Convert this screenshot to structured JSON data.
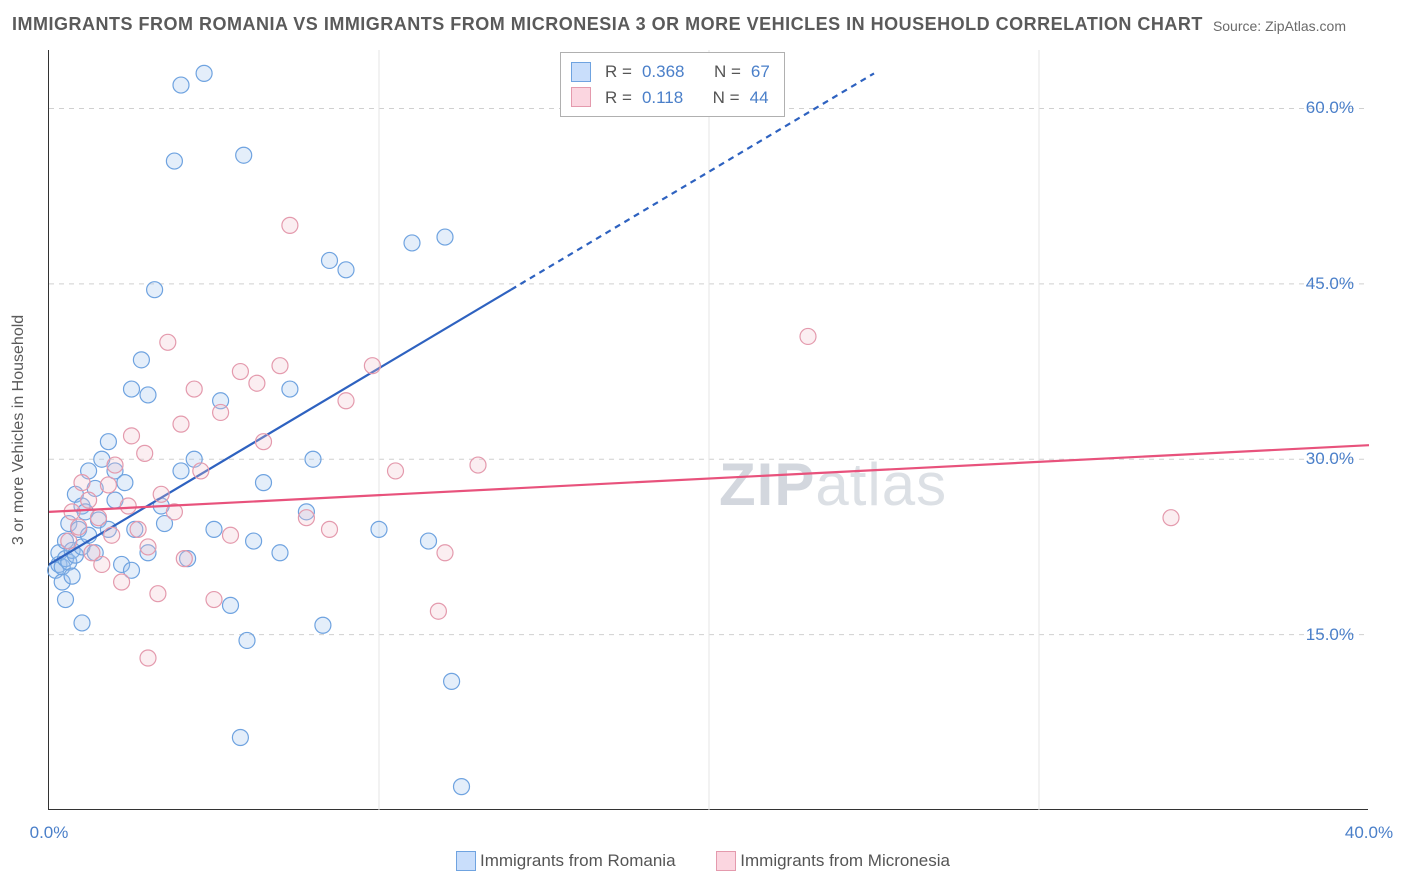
{
  "title": "IMMIGRANTS FROM ROMANIA VS IMMIGRANTS FROM MICRONESIA 3 OR MORE VEHICLES IN HOUSEHOLD CORRELATION CHART",
  "source_label": "Source: ZipAtlas.com",
  "y_axis_label": "3 or more Vehicles in Household",
  "watermark_a": "ZIP",
  "watermark_b": "atlas",
  "chart": {
    "type": "scatter",
    "xlim": [
      0,
      40
    ],
    "ylim": [
      0,
      65
    ],
    "x_ticks": [
      0,
      40
    ],
    "x_tick_labels": [
      "0.0%",
      "40.0%"
    ],
    "y_ticks": [
      15,
      30,
      45,
      60
    ],
    "y_tick_labels": [
      "15.0%",
      "30.0%",
      "45.0%",
      "60.0%"
    ],
    "x_minor_ticks": [
      10,
      20,
      30
    ],
    "background_color": "#ffffff",
    "grid_color": "#d0d0d0",
    "axis_color": "#333333",
    "marker_radius": 8,
    "marker_stroke_width": 1.2,
    "marker_fill_opacity": 0.28,
    "line_width": 2.2,
    "series": [
      {
        "name": "Immigrants from Romania",
        "color_stroke": "#6fa3e0",
        "color_fill": "#9fc3ed",
        "line_color": "#2e62c0",
        "R": "0.368",
        "N": "67",
        "reg_line": {
          "x1": 0,
          "y1": 21,
          "x2": 14,
          "y2": 44.5,
          "dash_from_x": 14,
          "dash_to_x": 25,
          "dash_to_y": 63
        },
        "points": [
          [
            0.2,
            20.5
          ],
          [
            0.3,
            21
          ],
          [
            0.3,
            22
          ],
          [
            0.4,
            19.5
          ],
          [
            0.4,
            20.8
          ],
          [
            0.5,
            21.5
          ],
          [
            0.5,
            23
          ],
          [
            0.6,
            21.2
          ],
          [
            0.6,
            24.5
          ],
          [
            0.7,
            20
          ],
          [
            0.7,
            22.2
          ],
          [
            0.8,
            21.8
          ],
          [
            0.8,
            27
          ],
          [
            0.9,
            24
          ],
          [
            1.0,
            22.5
          ],
          [
            1.0,
            26
          ],
          [
            1.1,
            25.5
          ],
          [
            1.2,
            23.5
          ],
          [
            1.2,
            29
          ],
          [
            1.4,
            22
          ],
          [
            1.4,
            27.5
          ],
          [
            1.5,
            24.8
          ],
          [
            1.6,
            30
          ],
          [
            1.8,
            31.5
          ],
          [
            1.8,
            24
          ],
          [
            2.0,
            26.5
          ],
          [
            2.0,
            29
          ],
          [
            2.2,
            21
          ],
          [
            2.3,
            28
          ],
          [
            2.5,
            20.5
          ],
          [
            2.5,
            36
          ],
          [
            2.6,
            24
          ],
          [
            2.8,
            38.5
          ],
          [
            3.0,
            22
          ],
          [
            3.0,
            35.5
          ],
          [
            3.2,
            44.5
          ],
          [
            3.4,
            26
          ],
          [
            3.5,
            24.5
          ],
          [
            3.8,
            55.5
          ],
          [
            4.0,
            29
          ],
          [
            4.0,
            62
          ],
          [
            4.2,
            21.5
          ],
          [
            4.4,
            30
          ],
          [
            4.7,
            63
          ],
          [
            5.0,
            24
          ],
          [
            5.2,
            35
          ],
          [
            5.5,
            17.5
          ],
          [
            5.8,
            6.2
          ],
          [
            5.9,
            56
          ],
          [
            6.0,
            14.5
          ],
          [
            6.2,
            23
          ],
          [
            6.5,
            28
          ],
          [
            7.0,
            22
          ],
          [
            7.3,
            36
          ],
          [
            7.8,
            25.5
          ],
          [
            8.0,
            30
          ],
          [
            8.3,
            15.8
          ],
          [
            8.5,
            47
          ],
          [
            9.0,
            46.2
          ],
          [
            10.0,
            24
          ],
          [
            11.0,
            48.5
          ],
          [
            11.5,
            23
          ],
          [
            12.0,
            49
          ],
          [
            12.2,
            11
          ],
          [
            12.5,
            2
          ],
          [
            1.0,
            16
          ],
          [
            0.5,
            18
          ]
        ]
      },
      {
        "name": "Immigrants from Micronesia",
        "color_stroke": "#e49aad",
        "color_fill": "#f2c1cd",
        "line_color": "#e8527c",
        "R": "0.118",
        "N": "44",
        "reg_line": {
          "x1": 0,
          "y1": 25.5,
          "x2": 40,
          "y2": 31.2
        },
        "points": [
          [
            0.6,
            23
          ],
          [
            0.7,
            25.5
          ],
          [
            0.9,
            24.2
          ],
          [
            1.0,
            28
          ],
          [
            1.2,
            26.5
          ],
          [
            1.3,
            22
          ],
          [
            1.5,
            25
          ],
          [
            1.6,
            21
          ],
          [
            1.8,
            27.8
          ],
          [
            1.9,
            23.5
          ],
          [
            2.0,
            29.5
          ],
          [
            2.2,
            19.5
          ],
          [
            2.4,
            26
          ],
          [
            2.5,
            32
          ],
          [
            2.7,
            24
          ],
          [
            2.9,
            30.5
          ],
          [
            3.0,
            13
          ],
          [
            3.0,
            22.5
          ],
          [
            3.3,
            18.5
          ],
          [
            3.4,
            27
          ],
          [
            3.6,
            40
          ],
          [
            3.8,
            25.5
          ],
          [
            4.0,
            33
          ],
          [
            4.1,
            21.5
          ],
          [
            4.4,
            36
          ],
          [
            4.6,
            29
          ],
          [
            5.0,
            18
          ],
          [
            5.2,
            34
          ],
          [
            5.5,
            23.5
          ],
          [
            5.8,
            37.5
          ],
          [
            6.3,
            36.5
          ],
          [
            6.5,
            31.5
          ],
          [
            7.0,
            38
          ],
          [
            7.3,
            50
          ],
          [
            7.8,
            25
          ],
          [
            8.5,
            24
          ],
          [
            9.0,
            35
          ],
          [
            9.8,
            38
          ],
          [
            10.5,
            29
          ],
          [
            11.8,
            17
          ],
          [
            12.0,
            22
          ],
          [
            13.0,
            29.5
          ],
          [
            23.0,
            40.5
          ],
          [
            34.0,
            25
          ]
        ]
      }
    ]
  },
  "stats_box": {
    "rows": [
      {
        "swatch_stroke": "#6fa3e0",
        "swatch_fill": "#c9defb",
        "r_label": "R =",
        "r_value": "0.368",
        "n_label": "N =",
        "n_value": "67"
      },
      {
        "swatch_stroke": "#e49aad",
        "swatch_fill": "#fbd6e0",
        "r_label": "R =",
        "r_value": "0.118",
        "n_label": "N =",
        "n_value": "44"
      }
    ]
  },
  "legend": {
    "items": [
      {
        "swatch_stroke": "#6fa3e0",
        "swatch_fill": "#c9defb",
        "label": "Immigrants from Romania"
      },
      {
        "swatch_stroke": "#e49aad",
        "swatch_fill": "#fbd6e0",
        "label": "Immigrants from Micronesia"
      }
    ]
  }
}
